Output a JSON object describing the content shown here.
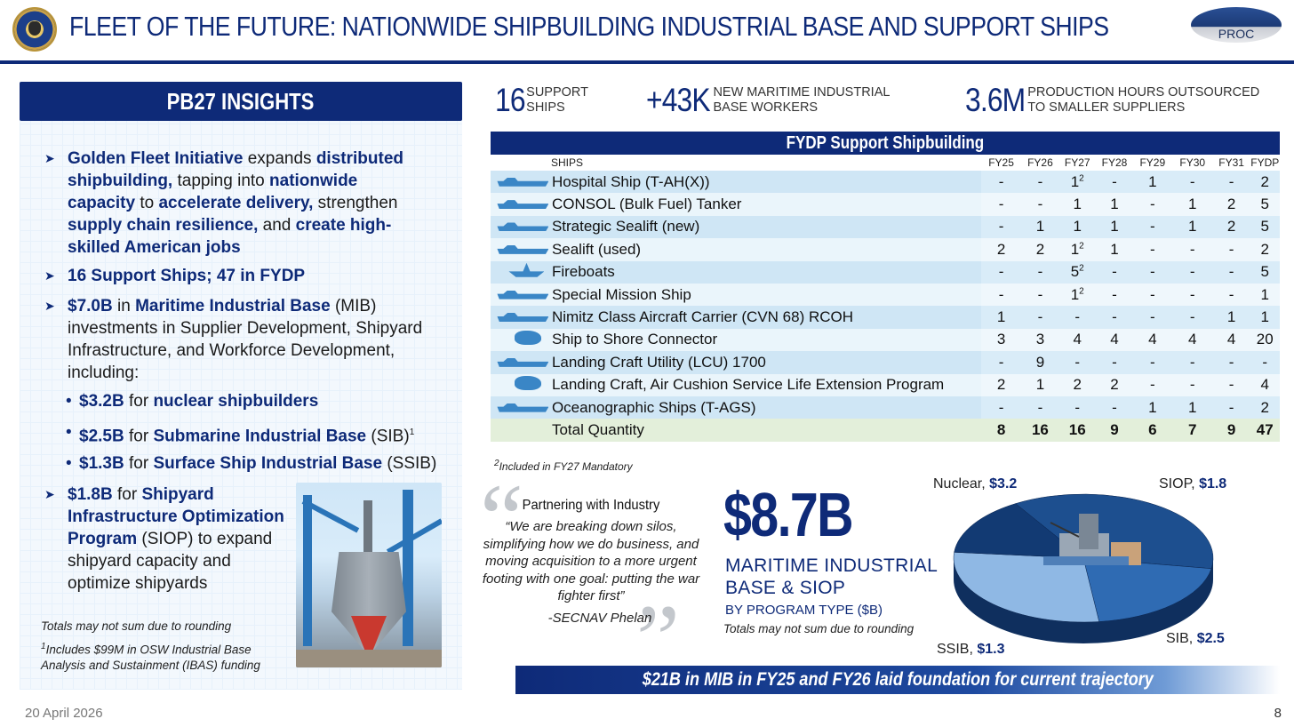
{
  "header": {
    "title": "FLEET OF THE FUTURE: NATIONWIDE SHIPBUILDING INDUSTRIAL BASE AND SUPPORT SHIPS",
    "badge": "PROC"
  },
  "insights": {
    "heading": "PB27 INSIGHTS",
    "b1": {
      "p1": "Golden Fleet Initiative",
      "p2": " expands ",
      "p3": "distributed shipbuilding,",
      "p4": " tapping into ",
      "p5": "nationwide capacity",
      "p6": " to ",
      "p7": "accelerate delivery,",
      "p8": " strengthen ",
      "p9": "supply chain resilience,",
      "p10": " and ",
      "p11": "create high-skilled American jobs"
    },
    "b2": "16 Support Ships; 47 in FYDP",
    "b3": {
      "p1": "$7.0B",
      "p2": " in ",
      "p3": "Maritime Industrial Base",
      "p4": " (MIB) investments in Supplier Development, Shipyard Infrastructure, and Workforce Development, including:"
    },
    "subs": [
      {
        "amt": "$3.2B",
        "mid": " for ",
        "name": "nuclear shipbuilders",
        "tail": "",
        "sup": ""
      },
      {
        "amt": "$2.5B",
        "mid": " for ",
        "name": "Submarine Industrial Base",
        "tail": " (SIB)",
        "sup": "1"
      },
      {
        "amt": "$1.3B",
        "mid": " for ",
        "name": "Surface Ship Industrial Base",
        "tail": " (SSIB)",
        "sup": ""
      }
    ],
    "b4": {
      "p1": "$1.8B",
      "p2": " for ",
      "p3": "Shipyard Infrastructure Optimization Program",
      "p4": " (SIOP) to expand shipyard capacity and optimize shipyards"
    },
    "note1": "Totals may not sum due to rounding",
    "note2_sup": "1",
    "note2": "Includes $99M in OSW Industrial Base Analysis and Sustainment (IBAS) funding"
  },
  "stats": [
    {
      "num": "16",
      "label1": "SUPPORT",
      "label2": "SHIPS"
    },
    {
      "num": "+43K",
      "label1": "NEW MARITIME INDUSTRIAL",
      "label2": "BASE WORKERS"
    },
    {
      "num": "3.6M",
      "label1": "PRODUCTION HOURS OUTSOURCED",
      "label2": "TO SMALLER SUPPLIERS"
    }
  ],
  "table": {
    "title": "FYDP Support Shipbuilding",
    "columns": [
      "SHIPS",
      "FY25",
      "FY26",
      "FY27",
      "FY28",
      "FY29",
      "FY30",
      "FY31",
      "FYDP"
    ],
    "rows": [
      {
        "name": "Hospital Ship (T-AH(X))",
        "vals": [
          "-",
          "-",
          "1",
          "-",
          "1",
          "-",
          "-",
          "2"
        ],
        "sup27": "2"
      },
      {
        "name": "CONSOL (Bulk Fuel) Tanker",
        "vals": [
          "-",
          "-",
          "1",
          "1",
          "-",
          "1",
          "2",
          "5"
        ],
        "sup27": ""
      },
      {
        "name": "Strategic Sealift (new)",
        "vals": [
          "-",
          "1",
          "1",
          "1",
          "-",
          "1",
          "2",
          "5"
        ],
        "sup27": ""
      },
      {
        "name": "Sealift (used)",
        "vals": [
          "2",
          "2",
          "1",
          "1",
          "-",
          "-",
          "-",
          "2"
        ],
        "sup27": "2"
      },
      {
        "name": "Fireboats",
        "vals": [
          "-",
          "-",
          "5",
          "-",
          "-",
          "-",
          "-",
          "5"
        ],
        "sup27": "2"
      },
      {
        "name": "Special Mission Ship",
        "vals": [
          "-",
          "-",
          "1",
          "-",
          "-",
          "-",
          "-",
          "1"
        ],
        "sup27": "2"
      },
      {
        "name": "Nimitz Class Aircraft Carrier (CVN 68) RCOH",
        "vals": [
          "1",
          "-",
          "-",
          "-",
          "-",
          "-",
          "1",
          "1"
        ],
        "sup27": ""
      },
      {
        "name": "Ship to Shore Connector",
        "vals": [
          "3",
          "3",
          "4",
          "4",
          "4",
          "4",
          "4",
          "20"
        ],
        "sup27": ""
      },
      {
        "name": "Landing Craft Utility (LCU) 1700",
        "vals": [
          "-",
          "9",
          "-",
          "-",
          "-",
          "-",
          "-",
          "-"
        ],
        "sup27": ""
      },
      {
        "name": "Landing Craft, Air Cushion Service Life Extension Program",
        "vals": [
          "2",
          "1",
          "2",
          "2",
          "-",
          "-",
          "-",
          "4"
        ],
        "sup27": ""
      },
      {
        "name": "Oceanographic Ships (T-AGS)",
        "vals": [
          "-",
          "-",
          "-",
          "-",
          "1",
          "1",
          "-",
          "2"
        ],
        "sup27": ""
      }
    ],
    "total": {
      "name": "Total Quantity",
      "vals": [
        "8",
        "16",
        "16",
        "9",
        "6",
        "7",
        "9",
        "47"
      ]
    },
    "footnote_sup": "2",
    "footnote": "Included in FY27 Mandatory"
  },
  "quote": {
    "title": "Partnering with Industry",
    "text": "“We are breaking down silos, simplifying how we do business, and moving acquisition to a more urgent footing with one goal: putting the war fighter first”",
    "author": "-SECNAV Phelan"
  },
  "mib": {
    "total": "$8.7B",
    "line1": "MARITIME INDUSTRIAL",
    "line2": "BASE & SIOP",
    "line3": "BY PROGRAM TYPE ($B)",
    "note": "Totals may not sum due to rounding"
  },
  "chart_data": {
    "type": "pie",
    "title": "",
    "slices": [
      {
        "label": "Nuclear",
        "value": 3.2,
        "display": "$3.2",
        "color": "#1d4f8f"
      },
      {
        "label": "SIOP",
        "value": 1.8,
        "display": "$1.8",
        "color": "#2f6bb3"
      },
      {
        "label": "SIB",
        "value": 2.5,
        "display": "$2.5",
        "color": "#8fb8e4"
      },
      {
        "label": "SSIB",
        "value": 1.3,
        "display": "$1.3",
        "color": "#123a73"
      }
    ]
  },
  "banner": "$21B in MIB in FY25 and FY26 laid foundation for current trajectory",
  "footer": {
    "date": "20 April 2026",
    "page": "8"
  },
  "colors": {
    "navy": "#0e2a78",
    "row_dark": "#cfe6f5",
    "row_light": "#eaf5fb",
    "total_row": "#e3efda"
  }
}
